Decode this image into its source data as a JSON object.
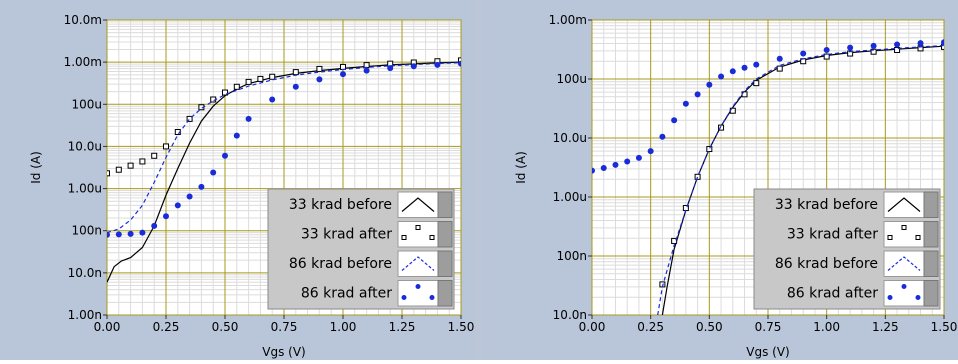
{
  "chart_data": [
    {
      "type": "scatter",
      "xlabel": "Vgs (V)",
      "ylabel": "Id (A)",
      "xlim": [
        0,
        1.5
      ],
      "ylim": [
        1e-09,
        0.01
      ],
      "yscale": "log",
      "x_ticks": [
        "0.00",
        "0.25",
        "0.50",
        "0.75",
        "1.00",
        "1.25",
        "1.50"
      ],
      "y_ticks": [
        "1.00n",
        "10.0n",
        "100n",
        "1.00u",
        "10.0u",
        "100u",
        "1.00m",
        "10.0m"
      ],
      "grid": true,
      "legend_position": "bottom-right",
      "colors": {
        "plot_bg": "#ffffff",
        "major_grid": "#a89a18",
        "minor_grid": "#dcdcdc",
        "frame": "#b9c5d8",
        "legend_bg": "#c8c8c8",
        "series_black": "#000000",
        "series_blue": "#1a2bd9"
      },
      "series": [
        {
          "name": "33 krad before",
          "style": "line",
          "color": "#000000",
          "x": [
            0,
            0.03,
            0.06,
            0.1,
            0.15,
            0.2,
            0.25,
            0.3,
            0.35,
            0.4,
            0.45,
            0.5,
            0.55,
            0.6,
            0.7,
            0.8,
            0.9,
            1.0,
            1.1,
            1.2,
            1.3,
            1.4,
            1.5
          ],
          "y": [
            6e-09,
            1.4e-08,
            1.9e-08,
            2.3e-08,
            4e-08,
            1.3e-07,
            7e-07,
            3e-06,
            1.2e-05,
            4e-05,
            9e-05,
            0.00016,
            0.00023,
            0.00031,
            0.00043,
            0.00054,
            0.00063,
            0.00071,
            0.00079,
            0.00086,
            0.00091,
            0.00096,
            0.001
          ]
        },
        {
          "name": "33 krad after",
          "style": "square",
          "color": "#000000",
          "x": [
            0,
            0.05,
            0.1,
            0.15,
            0.2,
            0.25,
            0.3,
            0.35,
            0.4,
            0.45,
            0.5,
            0.55,
            0.6,
            0.65,
            0.7,
            0.8,
            0.9,
            1.0,
            1.1,
            1.2,
            1.3,
            1.4,
            1.5
          ],
          "y": [
            2.3e-06,
            2.8e-06,
            3.5e-06,
            4.4e-06,
            6e-06,
            1e-05,
            2.2e-05,
            4.5e-05,
            8.5e-05,
            0.00013,
            0.00019,
            0.00026,
            0.00034,
            0.0004,
            0.00045,
            0.00058,
            0.00069,
            0.00077,
            0.00085,
            0.00092,
            0.00098,
            0.00105,
            0.0011
          ]
        },
        {
          "name": "86 krad before",
          "style": "dashed",
          "color": "#1a2bd9",
          "x": [
            0,
            0.05,
            0.1,
            0.15,
            0.2,
            0.25,
            0.3,
            0.35,
            0.4,
            0.45,
            0.5,
            0.6,
            0.7,
            0.8,
            0.9,
            1.0,
            1.1,
            1.2,
            1.3,
            1.4,
            1.5
          ],
          "y": [
            9e-08,
            1.1e-07,
            1.8e-07,
            4e-07,
            1.4e-06,
            5.5e-06,
            1.9e-05,
            4.5e-05,
            8e-05,
            0.00012,
            0.00017,
            0.00027,
            0.00038,
            0.00049,
            0.00058,
            0.00067,
            0.00075,
            0.00082,
            0.00088,
            0.00093,
            0.00097
          ]
        },
        {
          "name": "86 krad after",
          "style": "dot",
          "color": "#1a2bd9",
          "x": [
            0,
            0.05,
            0.1,
            0.15,
            0.2,
            0.25,
            0.3,
            0.35,
            0.4,
            0.45,
            0.5,
            0.55,
            0.6,
            0.7,
            0.8,
            0.9,
            1.0,
            1.1,
            1.2,
            1.3,
            1.4,
            1.5
          ],
          "y": [
            8e-08,
            8.2e-08,
            8.4e-08,
            9e-08,
            1.3e-07,
            2.2e-07,
            4e-07,
            6.5e-07,
            1.1e-06,
            2.4e-06,
            6e-06,
            1.8e-05,
            4.5e-05,
            0.00013,
            0.00026,
            0.00039,
            0.00052,
            0.00063,
            0.00072,
            0.0008,
            0.00086,
            0.00092
          ]
        }
      ]
    },
    {
      "type": "scatter",
      "xlabel": "Vgs (V)",
      "ylabel": "Id (A)",
      "xlim": [
        0,
        1.5
      ],
      "ylim": [
        1e-08,
        0.001
      ],
      "yscale": "log",
      "x_ticks": [
        "0.00",
        "0.25",
        "0.50",
        "0.75",
        "1.00",
        "1.25",
        "1.50"
      ],
      "y_ticks": [
        "10.0n",
        "100n",
        "1.00u",
        "10.0u",
        "100u",
        "1.00m"
      ],
      "grid": true,
      "legend_position": "bottom-right",
      "colors": {
        "plot_bg": "#ffffff",
        "major_grid": "#a89a18",
        "minor_grid": "#dcdcdc",
        "frame": "#b9c5d8",
        "legend_bg": "#c8c8c8",
        "series_black": "#000000",
        "series_blue": "#1a2bd9"
      },
      "series": [
        {
          "name": "33 krad before",
          "style": "line",
          "color": "#000000",
          "x": [
            0.3,
            0.32,
            0.35,
            0.4,
            0.45,
            0.5,
            0.55,
            0.6,
            0.65,
            0.7,
            0.8,
            0.9,
            1.0,
            1.1,
            1.2,
            1.3,
            1.4,
            1.5
          ],
          "y": [
            1e-08,
            3e-08,
            1.3e-07,
            6e-07,
            2.2e-06,
            6.5e-06,
            1.6e-05,
            3.3e-05,
            6e-05,
            9.5e-05,
            0.00016,
            0.00021,
            0.00025,
            0.00028,
            0.0003,
            0.00032,
            0.00034,
            0.00036
          ]
        },
        {
          "name": "33 krad after",
          "style": "square",
          "color": "#000000",
          "x": [
            0.3,
            0.35,
            0.4,
            0.45,
            0.5,
            0.55,
            0.6,
            0.65,
            0.7,
            0.8,
            0.9,
            1.0,
            1.1,
            1.2,
            1.3,
            1.4,
            1.5
          ],
          "y": [
            3.3e-08,
            1.8e-07,
            6.5e-07,
            2.2e-06,
            6.5e-06,
            1.5e-05,
            2.9e-05,
            5.5e-05,
            8.5e-05,
            0.00015,
            0.0002,
            0.00024,
            0.00027,
            0.00029,
            0.00031,
            0.00033,
            0.00035
          ]
        },
        {
          "name": "86 krad before",
          "style": "dashed",
          "color": "#1a2bd9",
          "x": [
            0.28,
            0.3,
            0.35,
            0.4,
            0.45,
            0.5,
            0.55,
            0.6,
            0.65,
            0.7,
            0.8,
            0.9,
            1.0,
            1.1,
            1.2,
            1.3,
            1.4,
            1.5
          ],
          "y": [
            1e-08,
            3e-08,
            1.5e-07,
            6e-07,
            2.2e-06,
            6.5e-06,
            1.6e-05,
            3.4e-05,
            6.3e-05,
            0.0001,
            0.00017,
            0.00022,
            0.00026,
            0.00029,
            0.00031,
            0.00033,
            0.00035,
            0.00037
          ]
        },
        {
          "name": "86 krad after",
          "style": "dot",
          "color": "#1a2bd9",
          "x": [
            0,
            0.05,
            0.1,
            0.15,
            0.2,
            0.25,
            0.3,
            0.35,
            0.4,
            0.45,
            0.5,
            0.55,
            0.6,
            0.65,
            0.7,
            0.8,
            0.9,
            1.0,
            1.1,
            1.2,
            1.3,
            1.4,
            1.5
          ],
          "y": [
            2.8e-06,
            3.1e-06,
            3.5e-06,
            4e-06,
            4.6e-06,
            6e-06,
            1.05e-05,
            2e-05,
            3.8e-05,
            5.5e-05,
            8e-05,
            0.00011,
            0.000135,
            0.000155,
            0.000175,
            0.00022,
            0.00027,
            0.00031,
            0.00034,
            0.000365,
            0.000385,
            0.000405,
            0.00042
          ]
        }
      ]
    }
  ]
}
